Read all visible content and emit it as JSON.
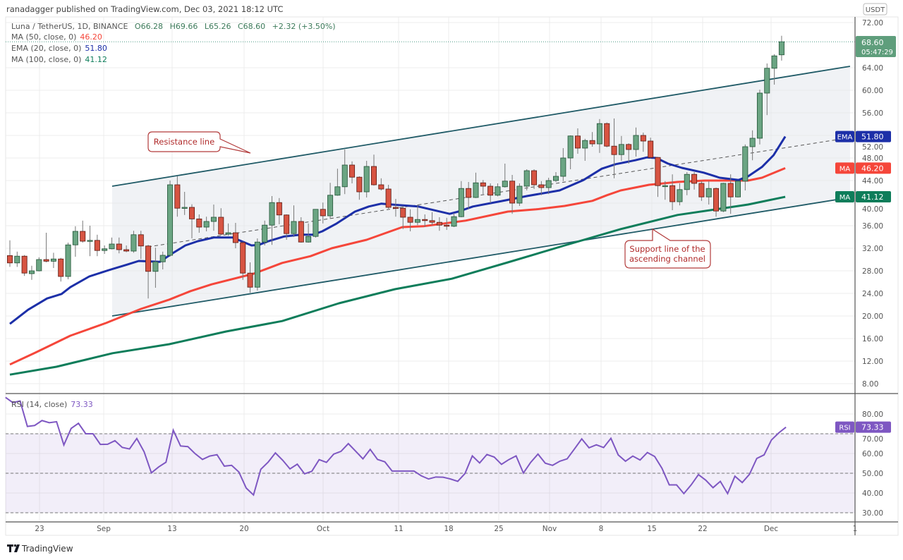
{
  "header": {
    "published": "ranadagger published on TradingView.com, Dec 03, 2021 18:12 UTC"
  },
  "legend": {
    "symbol": "Luna / TetherUS, 1D, BINANCE",
    "open": "O66.28",
    "high": "H69.66",
    "low": "L65.26",
    "close": "C68.60",
    "change": "+2.32 (+3.50%)",
    "ma50_label": "MA (50, close, 0)",
    "ma50_value": "46.20",
    "ema20_label": "EMA (20, close, 0)",
    "ema20_value": "51.80",
    "ma100_label": "MA (100, close, 0)",
    "ma100_value": "41.12",
    "rsi_label": "RSI (14, close)",
    "rsi_value": "73.33"
  },
  "price_axis": {
    "currency": "USDT",
    "last_price": "68.60",
    "countdown": "05:47:29",
    "ema_tag_label": "EMA",
    "ema_tag_value": "51.80",
    "ma50_tag_label": "MA",
    "ma50_tag_value": "46.20",
    "ma100_tag_label": "MA",
    "ma100_tag_value": "41.12",
    "rsi_tag_label": "RSI",
    "rsi_tag_value": "73.33"
  },
  "annotations": {
    "resistance": "Resistance line",
    "support_line1": "Support line of the",
    "support_line2": "ascending channel"
  },
  "footer": {
    "brand": "TradingView"
  },
  "colors": {
    "up": "#6ba583",
    "up_border": "#225437",
    "down": "#d75442",
    "down_border": "#5b1a13",
    "ema20": "#1c2fa8",
    "ma50": "#f5463a",
    "ma100": "#0e7d5a",
    "rsi": "#7e57c2",
    "channel": "#1f5a66",
    "annotation": "#b23b3b"
  },
  "chart_data": {
    "type": "candlestick",
    "title": "Luna / TetherUS, 1D, BINANCE",
    "ylim": [
      6,
      73
    ],
    "y_ticks": [
      72,
      64,
      60,
      56,
      52,
      48,
      44,
      40,
      36,
      32,
      28,
      24,
      20,
      16,
      12,
      8
    ],
    "y_tick_labels": [
      "72.00",
      "64.00",
      "60.00",
      "56.00",
      "52.00",
      "48.00",
      "44.00",
      "40.00",
      "36.00",
      "32.00",
      "28.00",
      "24.00",
      "20.00",
      "16.00",
      "12.00",
      "8.00"
    ],
    "x_tick_labels": [
      "23",
      "Sep",
      "13",
      "20",
      "Oct",
      "11",
      "18",
      "25",
      "Nov",
      "8",
      "15",
      "22",
      "Dec",
      "1"
    ],
    "candles_ohlc": [
      [
        30.7,
        33.4,
        28.7,
        29.4
      ],
      [
        29.4,
        31.4,
        28.7,
        30.6
      ],
      [
        30.6,
        30.8,
        27.1,
        27.6
      ],
      [
        27.5,
        28.9,
        26.4,
        28.0
      ],
      [
        28.0,
        30.4,
        27.9,
        30.0
      ],
      [
        30.0,
        34.75,
        29.5,
        29.7
      ],
      [
        29.7,
        31.2,
        28.5,
        30.1
      ],
      [
        30.1,
        30.3,
        26.1,
        27.0
      ],
      [
        27.0,
        33.0,
        26.5,
        32.6
      ],
      [
        32.6,
        35.9,
        30.5,
        35.0
      ],
      [
        35.0,
        36.9,
        33.0,
        33.25
      ],
      [
        33.25,
        36.0,
        30.6,
        33.4
      ],
      [
        33.4,
        34.4,
        30.6,
        31.6
      ],
      [
        31.6,
        32.5,
        31.0,
        31.9
      ],
      [
        31.9,
        33.9,
        31.8,
        32.75
      ],
      [
        32.75,
        33.9,
        31.1,
        31.75
      ],
      [
        31.75,
        32.5,
        31.3,
        31.5
      ],
      [
        31.5,
        35.1,
        31.2,
        34.4
      ],
      [
        34.4,
        35.1,
        30.1,
        32.4
      ],
      [
        32.4,
        32.6,
        23.1,
        27.9
      ],
      [
        27.9,
        32.1,
        25.0,
        29.6
      ],
      [
        29.6,
        31.4,
        28.25,
        30.75
      ],
      [
        30.75,
        44.0,
        30.5,
        43.25
      ],
      [
        43.25,
        44.75,
        37.6,
        39.1
      ],
      [
        39.1,
        42.0,
        37.9,
        39.25
      ],
      [
        39.25,
        39.8,
        33.75,
        37.2
      ],
      [
        37.2,
        38.0,
        34.75,
        35.75
      ],
      [
        35.75,
        37.6,
        35.0,
        36.75
      ],
      [
        36.75,
        39.75,
        35.1,
        37.5
      ],
      [
        37.5,
        39.1,
        34.3,
        34.5
      ],
      [
        34.5,
        36.4,
        34.2,
        34.75
      ],
      [
        34.75,
        36.5,
        32.0,
        33.0
      ],
      [
        33.0,
        33.2,
        26.4,
        27.6
      ],
      [
        27.6,
        29.5,
        24.1,
        25.1
      ],
      [
        25.1,
        33.75,
        24.5,
        33.1
      ],
      [
        33.1,
        36.9,
        32.5,
        36.1
      ],
      [
        36.1,
        41.25,
        32.6,
        40.1
      ],
      [
        40.1,
        40.9,
        36.25,
        37.9
      ],
      [
        37.9,
        38.0,
        33.5,
        34.6
      ],
      [
        34.6,
        39.6,
        34.0,
        36.75
      ],
      [
        36.75,
        37.5,
        33.0,
        33.1
      ],
      [
        33.1,
        36.4,
        33.0,
        34.1
      ],
      [
        34.1,
        38.9,
        33.9,
        38.9
      ],
      [
        38.9,
        40.1,
        36.4,
        37.75
      ],
      [
        37.75,
        43.6,
        37.25,
        41.4
      ],
      [
        41.4,
        46.1,
        41.3,
        42.9
      ],
      [
        42.9,
        49.5,
        41.6,
        46.75
      ],
      [
        46.75,
        47.4,
        43.5,
        44.6
      ],
      [
        44.6,
        44.75,
        40.6,
        42.0
      ],
      [
        42.0,
        47.5,
        41.0,
        46.5
      ],
      [
        46.5,
        48.6,
        43.1,
        43.25
      ],
      [
        43.25,
        44.4,
        42.25,
        42.5
      ],
      [
        42.5,
        43.25,
        39.0,
        39.25
      ],
      [
        39.25,
        40.75,
        37.6,
        39.1
      ],
      [
        39.1,
        39.5,
        35.4,
        37.5
      ],
      [
        37.5,
        38.9,
        35.0,
        36.6
      ],
      [
        36.6,
        39.75,
        36.1,
        37.1
      ],
      [
        37.1,
        38.0,
        35.75,
        36.9
      ],
      [
        36.9,
        38.4,
        36.1,
        36.6
      ],
      [
        36.6,
        37.5,
        35.1,
        36.1
      ],
      [
        36.1,
        37.4,
        35.25,
        35.9
      ],
      [
        35.9,
        38.25,
        35.75,
        37.6
      ],
      [
        37.6,
        43.9,
        37.5,
        42.6
      ],
      [
        42.6,
        43.75,
        38.9,
        41.0
      ],
      [
        41.0,
        45.4,
        40.9,
        43.6
      ],
      [
        43.6,
        44.1,
        41.6,
        43.0
      ],
      [
        43.0,
        43.5,
        40.0,
        41.4
      ],
      [
        41.4,
        43.5,
        41.2,
        42.9
      ],
      [
        42.9,
        47.0,
        42.75,
        43.9
      ],
      [
        43.9,
        45.0,
        38.1,
        40.0
      ],
      [
        40.0,
        43.5,
        39.5,
        43.0
      ],
      [
        43.0,
        46.0,
        42.25,
        45.75
      ],
      [
        45.75,
        46.0,
        42.5,
        43.25
      ],
      [
        43.25,
        43.9,
        41.4,
        42.75
      ],
      [
        42.75,
        44.5,
        41.6,
        44.0
      ],
      [
        44.0,
        45.5,
        43.75,
        44.75
      ],
      [
        44.75,
        49.75,
        43.9,
        48.0
      ],
      [
        48.0,
        52.0,
        46.0,
        51.9
      ],
      [
        51.9,
        53.25,
        48.75,
        49.75
      ],
      [
        49.75,
        51.4,
        47.5,
        51.1
      ],
      [
        51.1,
        52.6,
        50.0,
        50.5
      ],
      [
        50.5,
        54.9,
        48.9,
        54.1
      ],
      [
        54.1,
        54.3,
        49.9,
        50.1
      ],
      [
        50.1,
        55.0,
        44.4,
        48.6
      ],
      [
        48.6,
        51.9,
        47.5,
        50.4
      ],
      [
        50.4,
        50.6,
        47.0,
        49.5
      ],
      [
        49.5,
        53.4,
        48.25,
        52.0
      ],
      [
        52.0,
        52.5,
        49.1,
        51.0
      ],
      [
        51.0,
        51.6,
        47.9,
        48.1
      ],
      [
        48.1,
        48.2,
        41.1,
        43.1
      ],
      [
        43.1,
        43.9,
        40.6,
        43.1
      ],
      [
        43.1,
        45.1,
        38.75,
        40.25
      ],
      [
        40.25,
        43.5,
        39.6,
        42.4
      ],
      [
        42.4,
        45.5,
        41.4,
        45.1
      ],
      [
        45.1,
        45.5,
        42.4,
        43.5
      ],
      [
        43.5,
        43.9,
        40.4,
        41.1
      ],
      [
        41.1,
        43.9,
        39.75,
        42.6
      ],
      [
        42.6,
        42.75,
        37.6,
        38.6
      ],
      [
        38.6,
        43.6,
        38.4,
        43.5
      ],
      [
        43.5,
        45.1,
        38.1,
        41.1
      ],
      [
        41.1,
        44.0,
        41.0,
        43.9
      ],
      [
        43.9,
        50.4,
        42.25,
        50.0
      ],
      [
        50.0,
        52.9,
        47.6,
        51.5
      ],
      [
        51.5,
        60.1,
        50.4,
        59.5
      ],
      [
        59.5,
        64.75,
        55.6,
        63.9
      ],
      [
        63.9,
        66.4,
        61.0,
        66.1
      ],
      [
        66.28,
        69.66,
        65.26,
        68.6
      ]
    ],
    "ema20": [
      [
        0,
        18.6
      ],
      [
        2.5,
        21.1
      ],
      [
        5.1,
        23.1
      ],
      [
        7.1,
        23.9
      ],
      [
        8.3,
        25.1
      ],
      [
        10.9,
        27
      ],
      [
        13.9,
        28.25
      ],
      [
        16.1,
        29.1
      ],
      [
        17.7,
        29.75
      ],
      [
        20.6,
        29.6
      ],
      [
        22.2,
        31
      ],
      [
        24.1,
        32.5
      ],
      [
        25.8,
        33.25
      ],
      [
        28,
        33.9
      ],
      [
        30.6,
        33.9
      ],
      [
        33.2,
        32.5
      ],
      [
        34.2,
        32.6
      ],
      [
        35.5,
        33.25
      ],
      [
        37.7,
        34.1
      ],
      [
        40,
        34.4
      ],
      [
        41.6,
        34.4
      ],
      [
        42.9,
        35
      ],
      [
        44.9,
        36.4
      ],
      [
        47.4,
        38.5
      ],
      [
        49.3,
        39.4
      ],
      [
        51,
        39.9
      ],
      [
        52.9,
        39.7
      ],
      [
        56.1,
        39.4
      ],
      [
        60.4,
        38.1
      ],
      [
        61.6,
        38.5
      ],
      [
        63.6,
        39.4
      ],
      [
        68.1,
        40.5
      ],
      [
        71,
        41.25
      ],
      [
        75.5,
        42.25
      ],
      [
        78.8,
        44.1
      ],
      [
        81.3,
        46.1
      ],
      [
        83.2,
        46.9
      ],
      [
        85.9,
        47.6
      ],
      [
        87.5,
        48.1
      ],
      [
        88.8,
        48.0
      ],
      [
        90.4,
        47
      ],
      [
        92.3,
        46.25
      ],
      [
        95.3,
        45.4
      ],
      [
        97.5,
        44.5
      ],
      [
        100.1,
        44.1
      ],
      [
        101.4,
        44.75
      ],
      [
        103.3,
        46.4
      ],
      [
        104.9,
        48.5
      ],
      [
        106.5,
        51.8
      ]
    ],
    "ma50": [
      [
        0,
        11.4
      ],
      [
        3.5,
        13.5
      ],
      [
        8.3,
        16.5
      ],
      [
        13.2,
        18.75
      ],
      [
        18,
        21.25
      ],
      [
        21.9,
        22.9
      ],
      [
        24.8,
        24.4
      ],
      [
        27.7,
        25.6
      ],
      [
        33.5,
        27.5
      ],
      [
        37.4,
        29.4
      ],
      [
        41.3,
        30.6
      ],
      [
        44.2,
        32
      ],
      [
        49,
        33.5
      ],
      [
        53.9,
        35.75
      ],
      [
        56.8,
        35.9
      ],
      [
        62.6,
        36.9
      ],
      [
        68.4,
        38.5
      ],
      [
        72.3,
        38.9
      ],
      [
        76.2,
        39.5
      ],
      [
        80,
        40.4
      ],
      [
        82,
        41.4
      ],
      [
        83.9,
        42.25
      ],
      [
        87.8,
        43.25
      ],
      [
        91.7,
        43.75
      ],
      [
        95.5,
        44
      ],
      [
        101.4,
        44
      ],
      [
        103.3,
        44.5
      ],
      [
        106.5,
        46.2
      ]
    ],
    "ma100": [
      [
        0,
        9.6
      ],
      [
        6.4,
        11.0
      ],
      [
        14.1,
        13.4
      ],
      [
        21.9,
        15.0
      ],
      [
        29.7,
        17.25
      ],
      [
        37.4,
        19.1
      ],
      [
        45.2,
        22.25
      ],
      [
        52.9,
        24.75
      ],
      [
        60.7,
        26.6
      ],
      [
        68.4,
        29.5
      ],
      [
        76.2,
        32.5
      ],
      [
        83.9,
        35.4
      ],
      [
        91.7,
        37.9
      ],
      [
        97.5,
        39.0
      ],
      [
        101.4,
        39.75
      ],
      [
        106.5,
        41.12
      ]
    ],
    "channel": {
      "upper": [
        [
          14.05,
          43.0
        ],
        [
          115.4,
          64.25
        ]
      ],
      "lower": [
        [
          14.05,
          20.0
        ],
        [
          115.4,
          41.0
        ]
      ],
      "mid": [
        [
          19,
          32.25
        ],
        [
          115.4,
          51.6
        ]
      ]
    },
    "last_price": 68.6,
    "rsi": {
      "ylim": [
        27,
        90
      ],
      "levels": [
        70,
        50,
        30
      ],
      "ticks": [
        80,
        70,
        60,
        50,
        40,
        30
      ],
      "tick_labels": [
        "80.00",
        "70.00",
        "60.00",
        "50.00",
        "40.00",
        "30.00"
      ],
      "values": [
        88.4,
        85.8,
        86.6,
        73.7,
        74.2,
        76.7,
        75.6,
        76.1,
        64.3,
        72.7,
        75.3,
        70,
        70,
        64.6,
        64.7,
        66.5,
        63.1,
        62.3,
        67.6,
        60.9,
        50.2,
        53.2,
        55.6,
        71.8,
        63.8,
        63.5,
        59.9,
        57,
        58.7,
        59.4,
        53.6,
        54.0,
        50.6,
        42.5,
        39.0,
        52,
        55.6,
        60.3,
        56.6,
        52.2,
        54.6,
        49.7,
        51,
        56.9,
        55.5,
        59.7,
        61.1,
        65,
        61.2,
        57.3,
        62.1,
        57,
        55.8,
        51.1,
        51.1,
        51.1,
        51.1,
        48.7,
        47.1,
        48.1,
        48,
        47.1,
        45.9,
        49.9,
        58.8,
        55.2,
        59.5,
        58.2,
        54.5,
        56.9,
        58.8,
        50.1,
        55.5,
        59.7,
        55.1,
        54.0,
        56.1,
        57.3,
        62.3,
        67.4,
        62.9,
        64.4,
        63.0,
        67.7,
        59.3,
        56.1,
        58.7,
        56.7,
        60.5,
        58.5,
        52.5,
        44.1,
        44.1,
        39.7,
        44.1,
        49.3,
        46.5,
        42.7,
        45.9,
        39.7,
        48.5,
        45.3,
        49.5,
        57.5,
        59.3,
        66.8,
        70.4,
        73.33
      ]
    }
  }
}
